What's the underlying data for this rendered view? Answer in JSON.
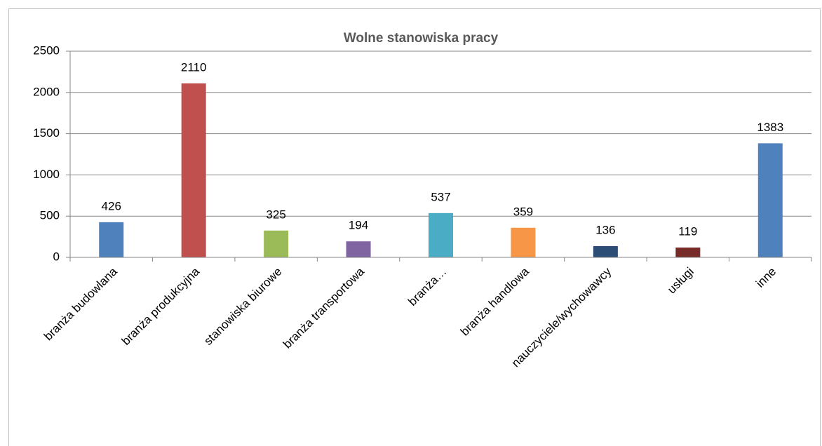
{
  "chart_data": {
    "type": "bar",
    "title": "Wolne stanowiska pracy",
    "categories": [
      "branża budowlana",
      "branża produkcyjna",
      "stanowiska biurowe",
      "branża transportowa",
      "branża…",
      "branża handlowa",
      "nauczyciele/wychowawcy",
      "usługi",
      "inne"
    ],
    "values": [
      426,
      2110,
      325,
      194,
      537,
      359,
      136,
      119,
      1383
    ],
    "colors": [
      "#4f81bd",
      "#c0504d",
      "#9bbb59",
      "#8064a2",
      "#4bacc6",
      "#f79646",
      "#2c4d75",
      "#772c2a",
      "#4f81bd"
    ],
    "ylim": [
      0,
      2500
    ],
    "yticks": [
      0,
      500,
      1000,
      1500,
      2000,
      2500
    ],
    "grid": true,
    "data_labels": true
  }
}
